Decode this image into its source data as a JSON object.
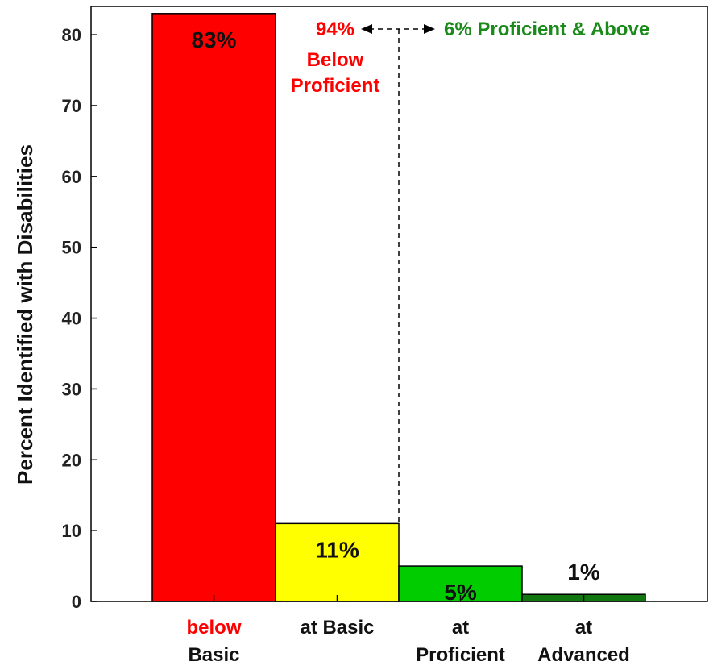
{
  "chart_data": {
    "type": "bar",
    "ylabel": "Percent Identified with Disabilities",
    "ylim": [
      0,
      84
    ],
    "yticks": [
      0,
      10,
      20,
      30,
      40,
      50,
      60,
      70,
      80
    ],
    "grid": false,
    "bars": [
      {
        "label_line1": "below",
        "label_line2": "Basic",
        "value": 83,
        "data_label": "83%",
        "color": "#ff0000",
        "label1_color": "#ff0000"
      },
      {
        "label_line1": "at Basic",
        "label_line2": "",
        "value": 11,
        "data_label": "11%",
        "color": "#ffff00",
        "label1_color": "#111111"
      },
      {
        "label_line1": "at",
        "label_line2": "Proficient",
        "value": 5,
        "data_label": "5%",
        "color": "#00cc00",
        "label1_color": "#111111"
      },
      {
        "label_line1": "at",
        "label_line2": "Advanced",
        "value": 1,
        "data_label": "1%",
        "color": "#117711",
        "label1_color": "#111111"
      }
    ],
    "annotations": {
      "below_pct": "94%",
      "below_line1": "Below",
      "below_line2": "Proficient",
      "above_text": "6% Proficient & Above",
      "red_color": "#ff0000",
      "green_color": "#1a8a1a"
    }
  }
}
